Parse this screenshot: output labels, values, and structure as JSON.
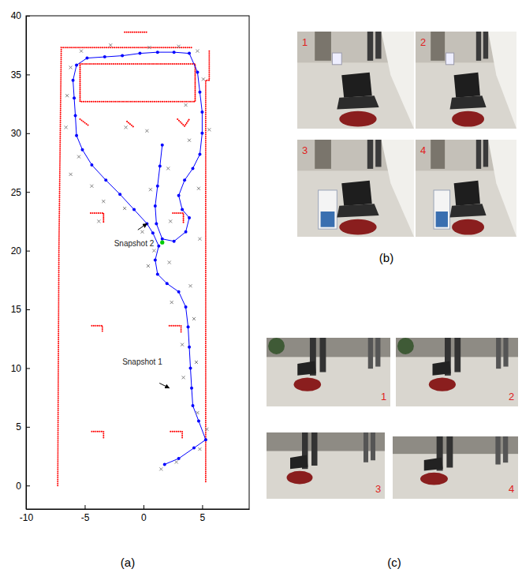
{
  "chart_data": {
    "type": "line",
    "xlim": [
      -10,
      9
    ],
    "ylim": [
      -2,
      40
    ],
    "xticks": [
      -10,
      -5,
      0,
      5
    ],
    "yticks": [
      0,
      5,
      10,
      15,
      20,
      25,
      30,
      35,
      40
    ],
    "series": [
      {
        "type": "line",
        "color": "#ff0000",
        "line_style": "dotted",
        "x": [
          -7.3,
          -7.2,
          -7.0,
          4.2,
          null,
          5.6,
          5.6,
          5.3,
          5.3,
          null,
          -1.6,
          0.3,
          null,
          -5.4,
          4.4,
          4.4,
          -5.4,
          -5.4,
          null,
          -4.5,
          -3.4,
          -3.4,
          null,
          2.5,
          3.4,
          3.4,
          null,
          -4.4,
          -3.5,
          -3.5,
          null,
          2.2,
          3.2,
          3.2,
          null,
          -4.4,
          -3.4,
          -3.4,
          null,
          2.3,
          3.3,
          3.3,
          null,
          -5.4,
          -4.6,
          null,
          -1.4,
          -0.8,
          null,
          2.9,
          3.5,
          3.9
        ],
        "values": [
          0,
          20,
          37.3,
          37.3,
          null,
          37.0,
          34.5,
          34.5,
          0.3,
          null,
          38.6,
          38.6,
          null,
          35.9,
          35.9,
          32.7,
          32.7,
          35.9,
          null,
          23.2,
          23.2,
          22.4,
          null,
          23.2,
          23.2,
          22.3,
          null,
          13.6,
          13.6,
          13.0,
          null,
          13.6,
          13.6,
          13.0,
          null,
          4.6,
          4.6,
          4.0,
          null,
          4.6,
          4.6,
          4.0,
          null,
          31.2,
          30.6,
          null,
          31.0,
          30.5,
          null,
          31.2,
          30.6,
          31.2
        ]
      },
      {
        "type": "line",
        "color": "#0000ff",
        "line_style": "solid",
        "marker": "dot",
        "x": [
          1.8,
          3.0,
          4.3,
          5.3,
          4.7,
          4.2,
          4.1,
          4.0,
          3.9,
          3.8,
          3.6,
          3.0,
          2.0,
          1.2,
          1.0,
          1.3,
          0.8,
          0.3,
          -0.8,
          -2.0,
          -3.2,
          -4.4,
          -5.2,
          -5.7,
          -5.8,
          -5.9,
          -6.0,
          -5.7,
          -4.8,
          -3.3,
          -1.8,
          -0.3,
          1.2,
          2.6,
          3.9,
          4.6,
          4.8,
          5.0,
          5.0,
          4.8,
          4.2,
          3.5,
          3.0,
          3.3,
          3.9,
          3.6,
          2.6,
          1.6,
          1.1,
          1.0,
          1.2,
          1.4,
          1.6
        ],
        "values": [
          1.8,
          2.3,
          3.2,
          3.9,
          5.5,
          6.8,
          8.3,
          10.0,
          11.8,
          13.5,
          15.2,
          16.5,
          17.2,
          18.0,
          19.2,
          20.4,
          21.5,
          22.3,
          23.5,
          24.8,
          26.0,
          27.3,
          28.6,
          29.8,
          31.5,
          33.0,
          34.5,
          35.8,
          36.4,
          36.5,
          36.6,
          36.8,
          36.9,
          36.9,
          36.8,
          35.2,
          33.5,
          31.8,
          30.0,
          28.2,
          27.0,
          26.0,
          24.7,
          23.5,
          22.8,
          21.6,
          20.8,
          21.0,
          22.3,
          23.8,
          25.5,
          27.2,
          29.0
        ]
      },
      {
        "type": "scatter",
        "color": "#808080",
        "marker": "x",
        "x": [
          1.5,
          2.8,
          4.8,
          5.4,
          4.6,
          3.4,
          4.5,
          3.3,
          4.3,
          2.4,
          4.0,
          0.4,
          2.2,
          0.9,
          -0.1,
          -1.6,
          -3.4,
          -4.4,
          -3.8,
          -6.2,
          -5.5,
          -6.6,
          -6.5,
          -6.2,
          -5.3,
          -2.8,
          0.5,
          3.0,
          4.6,
          5.1,
          3.6,
          5.6,
          3.9,
          2.1,
          0.6,
          4.7,
          2.3,
          4.8,
          -1.5,
          0.3
        ],
        "values": [
          1.4,
          2.0,
          3.1,
          4.8,
          6.2,
          9.2,
          10.5,
          12.0,
          14.2,
          15.6,
          17.0,
          18.7,
          19.0,
          20.0,
          21.6,
          23.6,
          24.2,
          25.5,
          22.5,
          26.5,
          28.0,
          30.5,
          33.2,
          35.6,
          37.0,
          37.5,
          37.3,
          37.4,
          37.0,
          34.6,
          32.4,
          30.3,
          29.4,
          27.0,
          25.2,
          25.3,
          22.5,
          21.0,
          30.5,
          30.2
        ]
      },
      {
        "type": "scatter",
        "color": "#00cc00",
        "marker": "dot",
        "x": [
          1.6
        ],
        "values": [
          20.7
        ]
      }
    ],
    "annotations": [
      {
        "text": "Snapshot 1",
        "text_x": -1.8,
        "text_y": 10.3,
        "x": 2.2,
        "y": 8.3
      },
      {
        "text": "Snapshot 2",
        "text_x": -2.5,
        "text_y": 20.4,
        "x": 0.3,
        "y": 22.3
      }
    ]
  },
  "panels": [
    {
      "label": "(a)"
    },
    {
      "label": "(b)",
      "photos": [
        "1",
        "2",
        "3",
        "4"
      ]
    },
    {
      "label": "(c)",
      "photos": [
        "1",
        "2",
        "3",
        "4"
      ]
    }
  ]
}
